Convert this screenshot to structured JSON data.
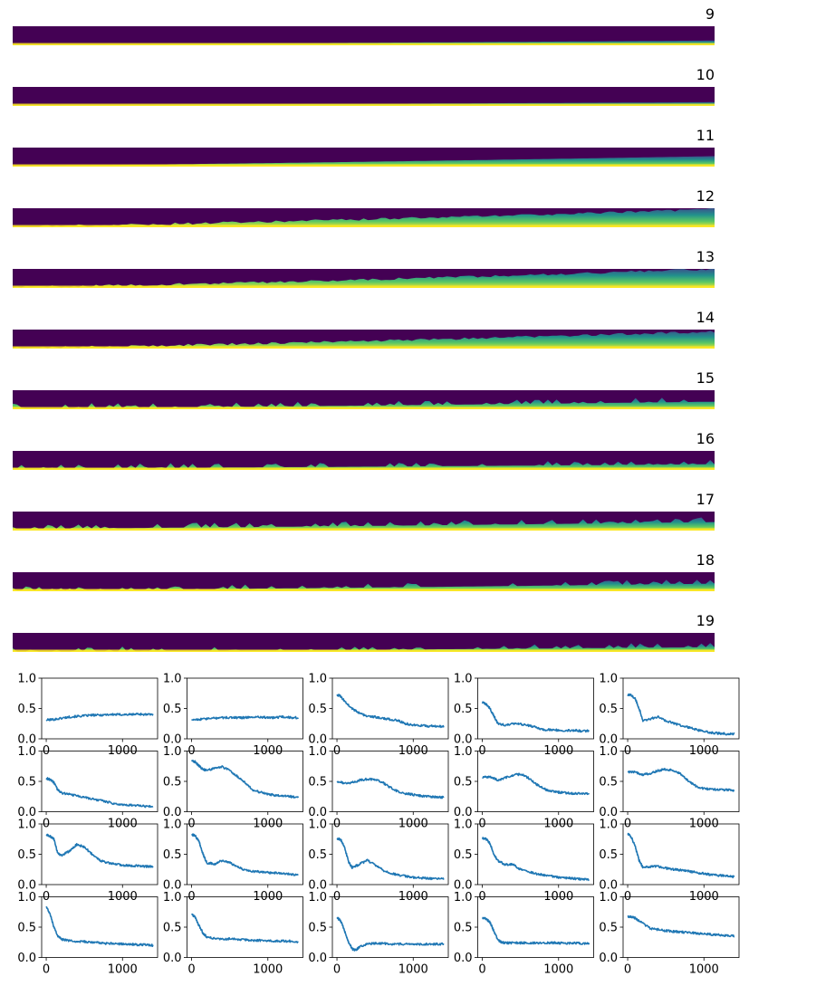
{
  "colors": {
    "heat_low": "#440154",
    "heat_mid1": "#3b528b",
    "heat_mid2": "#21918c",
    "heat_high1": "#5ec962",
    "heat_high2": "#fde725",
    "line": "#1f77b4",
    "axis": "#000000",
    "background": "#ffffff"
  },
  "chart_data": [
    {
      "type": "heatmap",
      "panels": [
        {
          "title": "9",
          "boundary_start": 0.05,
          "boundary_end": 0.25,
          "texture": "smooth"
        },
        {
          "title": "10",
          "boundary_start": 0.05,
          "boundary_end": 0.2,
          "texture": "smooth"
        },
        {
          "title": "11",
          "boundary_start": 0.05,
          "boundary_end": 0.55,
          "texture": "smooth"
        },
        {
          "title": "12",
          "boundary_start": 0.05,
          "boundary_end": 0.95,
          "texture": "jagged"
        },
        {
          "title": "13",
          "boundary_start": 0.05,
          "boundary_end": 1.0,
          "texture": "jagged"
        },
        {
          "title": "14",
          "boundary_start": 0.05,
          "boundary_end": 0.9,
          "texture": "jagged"
        },
        {
          "title": "15",
          "boundary_start": 0.05,
          "boundary_end": 0.4,
          "texture": "spiky"
        },
        {
          "title": "16",
          "boundary_start": 0.08,
          "boundary_end": 0.3,
          "texture": "spiky"
        },
        {
          "title": "17",
          "boundary_start": 0.1,
          "boundary_end": 0.45,
          "texture": "spiky"
        },
        {
          "title": "18",
          "boundary_start": 0.05,
          "boundary_end": 0.4,
          "texture": "spiky"
        },
        {
          "title": "19",
          "boundary_start": 0.02,
          "boundary_end": 0.25,
          "texture": "spiky"
        }
      ]
    },
    {
      "type": "line",
      "rows": 4,
      "cols": 5,
      "xlim": [
        -60,
        1460
      ],
      "ylim": [
        0,
        1
      ],
      "xticks": [
        0,
        1000
      ],
      "xtick_labels": [
        "0",
        "1000"
      ],
      "yticks": [
        0,
        0.5,
        1
      ],
      "ytick_labels": [
        "0.0",
        "0.5",
        "1.0"
      ],
      "grid": false,
      "panels": [
        {
          "x": [
            0,
            100,
            200,
            300,
            400,
            500,
            600,
            700,
            800,
            900,
            1000,
            1100,
            1200,
            1300,
            1400
          ],
          "y": [
            0.31,
            0.32,
            0.34,
            0.36,
            0.37,
            0.38,
            0.39,
            0.39,
            0.4,
            0.4,
            0.4,
            0.4,
            0.41,
            0.4,
            0.4
          ]
        },
        {
          "x": [
            0,
            100,
            200,
            300,
            400,
            500,
            600,
            700,
            800,
            900,
            1000,
            1100,
            1200,
            1300,
            1400
          ],
          "y": [
            0.32,
            0.32,
            0.33,
            0.34,
            0.35,
            0.35,
            0.35,
            0.35,
            0.36,
            0.36,
            0.35,
            0.35,
            0.36,
            0.35,
            0.35
          ]
        },
        {
          "x": [
            0,
            50,
            100,
            200,
            300,
            400,
            500,
            600,
            700,
            800,
            900,
            1000,
            1100,
            1200,
            1300,
            1400
          ],
          "y": [
            0.73,
            0.7,
            0.62,
            0.5,
            0.42,
            0.37,
            0.36,
            0.34,
            0.32,
            0.3,
            0.25,
            0.23,
            0.22,
            0.21,
            0.21,
            0.2
          ]
        },
        {
          "x": [
            0,
            50,
            100,
            150,
            200,
            300,
            400,
            500,
            600,
            700,
            800,
            900,
            1000,
            1100,
            1200,
            1300,
            1400
          ],
          "y": [
            0.6,
            0.57,
            0.5,
            0.38,
            0.26,
            0.22,
            0.25,
            0.24,
            0.22,
            0.19,
            0.15,
            0.15,
            0.14,
            0.14,
            0.14,
            0.13,
            0.13
          ]
        },
        {
          "x": [
            0,
            50,
            100,
            150,
            200,
            300,
            400,
            500,
            600,
            700,
            800,
            900,
            1000,
            1100,
            1200,
            1300,
            1400
          ],
          "y": [
            0.72,
            0.72,
            0.66,
            0.5,
            0.3,
            0.33,
            0.36,
            0.3,
            0.26,
            0.22,
            0.19,
            0.15,
            0.12,
            0.1,
            0.09,
            0.08,
            0.08
          ]
        },
        {
          "x": [
            0,
            50,
            100,
            150,
            200,
            300,
            400,
            500,
            600,
            700,
            800,
            900,
            1000,
            1100,
            1200,
            1300,
            1400
          ],
          "y": [
            0.55,
            0.53,
            0.48,
            0.36,
            0.31,
            0.29,
            0.26,
            0.24,
            0.21,
            0.19,
            0.16,
            0.13,
            0.12,
            0.11,
            0.1,
            0.09,
            0.09
          ]
        },
        {
          "x": [
            0,
            50,
            100,
            150,
            200,
            300,
            400,
            500,
            600,
            700,
            800,
            900,
            1000,
            1100,
            1200,
            1300,
            1400
          ],
          "y": [
            0.85,
            0.82,
            0.75,
            0.7,
            0.68,
            0.72,
            0.74,
            0.68,
            0.58,
            0.48,
            0.36,
            0.32,
            0.29,
            0.27,
            0.26,
            0.25,
            0.24
          ]
        },
        {
          "x": [
            0,
            100,
            200,
            300,
            400,
            500,
            600,
            700,
            800,
            900,
            1000,
            1100,
            1200,
            1300,
            1400
          ],
          "y": [
            0.5,
            0.47,
            0.48,
            0.52,
            0.54,
            0.53,
            0.48,
            0.4,
            0.33,
            0.3,
            0.28,
            0.26,
            0.25,
            0.24,
            0.24
          ]
        },
        {
          "x": [
            0,
            100,
            200,
            300,
            400,
            500,
            600,
            700,
            800,
            900,
            1000,
            1100,
            1200,
            1300,
            1400
          ],
          "y": [
            0.56,
            0.58,
            0.52,
            0.56,
            0.6,
            0.62,
            0.56,
            0.46,
            0.38,
            0.34,
            0.32,
            0.31,
            0.3,
            0.3,
            0.29
          ]
        },
        {
          "x": [
            0,
            100,
            200,
            300,
            400,
            500,
            600,
            700,
            800,
            900,
            1000,
            1100,
            1200,
            1300,
            1400
          ],
          "y": [
            0.66,
            0.65,
            0.61,
            0.63,
            0.68,
            0.7,
            0.68,
            0.62,
            0.5,
            0.42,
            0.38,
            0.37,
            0.36,
            0.36,
            0.35
          ]
        },
        {
          "x": [
            0,
            50,
            100,
            150,
            200,
            300,
            400,
            500,
            600,
            700,
            800,
            900,
            1000,
            1100,
            1200,
            1300,
            1400
          ],
          "y": [
            0.82,
            0.8,
            0.75,
            0.52,
            0.48,
            0.55,
            0.66,
            0.62,
            0.5,
            0.4,
            0.36,
            0.34,
            0.32,
            0.31,
            0.31,
            0.3,
            0.3
          ]
        },
        {
          "x": [
            0,
            50,
            100,
            150,
            200,
            300,
            400,
            500,
            600,
            700,
            800,
            900,
            1000,
            1100,
            1200,
            1300,
            1400
          ],
          "y": [
            0.83,
            0.8,
            0.7,
            0.5,
            0.36,
            0.34,
            0.4,
            0.36,
            0.29,
            0.24,
            0.22,
            0.21,
            0.2,
            0.19,
            0.18,
            0.17,
            0.16
          ]
        },
        {
          "x": [
            0,
            50,
            100,
            150,
            200,
            300,
            400,
            500,
            600,
            700,
            800,
            900,
            1000,
            1100,
            1200,
            1300,
            1400
          ],
          "y": [
            0.76,
            0.74,
            0.62,
            0.38,
            0.28,
            0.34,
            0.4,
            0.32,
            0.24,
            0.19,
            0.16,
            0.14,
            0.12,
            0.11,
            0.1,
            0.1,
            0.09
          ]
        },
        {
          "x": [
            0,
            50,
            100,
            150,
            200,
            300,
            400,
            500,
            600,
            700,
            800,
            900,
            1000,
            1100,
            1200,
            1300,
            1400
          ],
          "y": [
            0.76,
            0.75,
            0.68,
            0.5,
            0.4,
            0.33,
            0.33,
            0.25,
            0.22,
            0.18,
            0.16,
            0.14,
            0.12,
            0.11,
            0.1,
            0.09,
            0.08
          ]
        },
        {
          "x": [
            0,
            50,
            100,
            150,
            200,
            300,
            400,
            500,
            600,
            700,
            800,
            900,
            1000,
            1100,
            1200,
            1300,
            1400
          ],
          "y": [
            0.84,
            0.78,
            0.62,
            0.4,
            0.28,
            0.3,
            0.3,
            0.27,
            0.25,
            0.24,
            0.22,
            0.2,
            0.18,
            0.16,
            0.15,
            0.14,
            0.13
          ]
        },
        {
          "x": [
            0,
            50,
            100,
            150,
            200,
            300,
            400,
            500,
            600,
            700,
            800,
            900,
            1000,
            1100,
            1200,
            1300,
            1400
          ],
          "y": [
            0.84,
            0.72,
            0.5,
            0.35,
            0.3,
            0.28,
            0.26,
            0.26,
            0.25,
            0.24,
            0.23,
            0.23,
            0.22,
            0.22,
            0.21,
            0.21,
            0.2
          ]
        },
        {
          "x": [
            0,
            50,
            100,
            150,
            200,
            300,
            400,
            500,
            600,
            700,
            800,
            900,
            1000,
            1100,
            1200,
            1300,
            1400
          ],
          "y": [
            0.72,
            0.66,
            0.52,
            0.4,
            0.34,
            0.31,
            0.3,
            0.31,
            0.3,
            0.29,
            0.28,
            0.28,
            0.27,
            0.27,
            0.27,
            0.27,
            0.26
          ]
        },
        {
          "x": [
            0,
            50,
            100,
            150,
            200,
            250,
            300,
            400,
            500,
            600,
            700,
            800,
            900,
            1000,
            1100,
            1200,
            1300,
            1400
          ],
          "y": [
            0.66,
            0.6,
            0.44,
            0.26,
            0.14,
            0.12,
            0.18,
            0.22,
            0.23,
            0.23,
            0.22,
            0.22,
            0.22,
            0.22,
            0.22,
            0.22,
            0.22,
            0.22
          ]
        },
        {
          "x": [
            0,
            50,
            100,
            150,
            200,
            250,
            300,
            400,
            500,
            600,
            700,
            800,
            900,
            1000,
            1100,
            1200,
            1300,
            1400
          ],
          "y": [
            0.66,
            0.64,
            0.58,
            0.44,
            0.3,
            0.25,
            0.24,
            0.24,
            0.24,
            0.24,
            0.24,
            0.24,
            0.24,
            0.24,
            0.23,
            0.24,
            0.23,
            0.23
          ]
        },
        {
          "x": [
            0,
            50,
            100,
            200,
            300,
            400,
            500,
            600,
            700,
            800,
            900,
            1000,
            1100,
            1200,
            1300,
            1400
          ],
          "y": [
            0.67,
            0.67,
            0.65,
            0.56,
            0.48,
            0.46,
            0.44,
            0.43,
            0.42,
            0.41,
            0.4,
            0.39,
            0.38,
            0.37,
            0.36,
            0.35
          ]
        }
      ]
    }
  ]
}
